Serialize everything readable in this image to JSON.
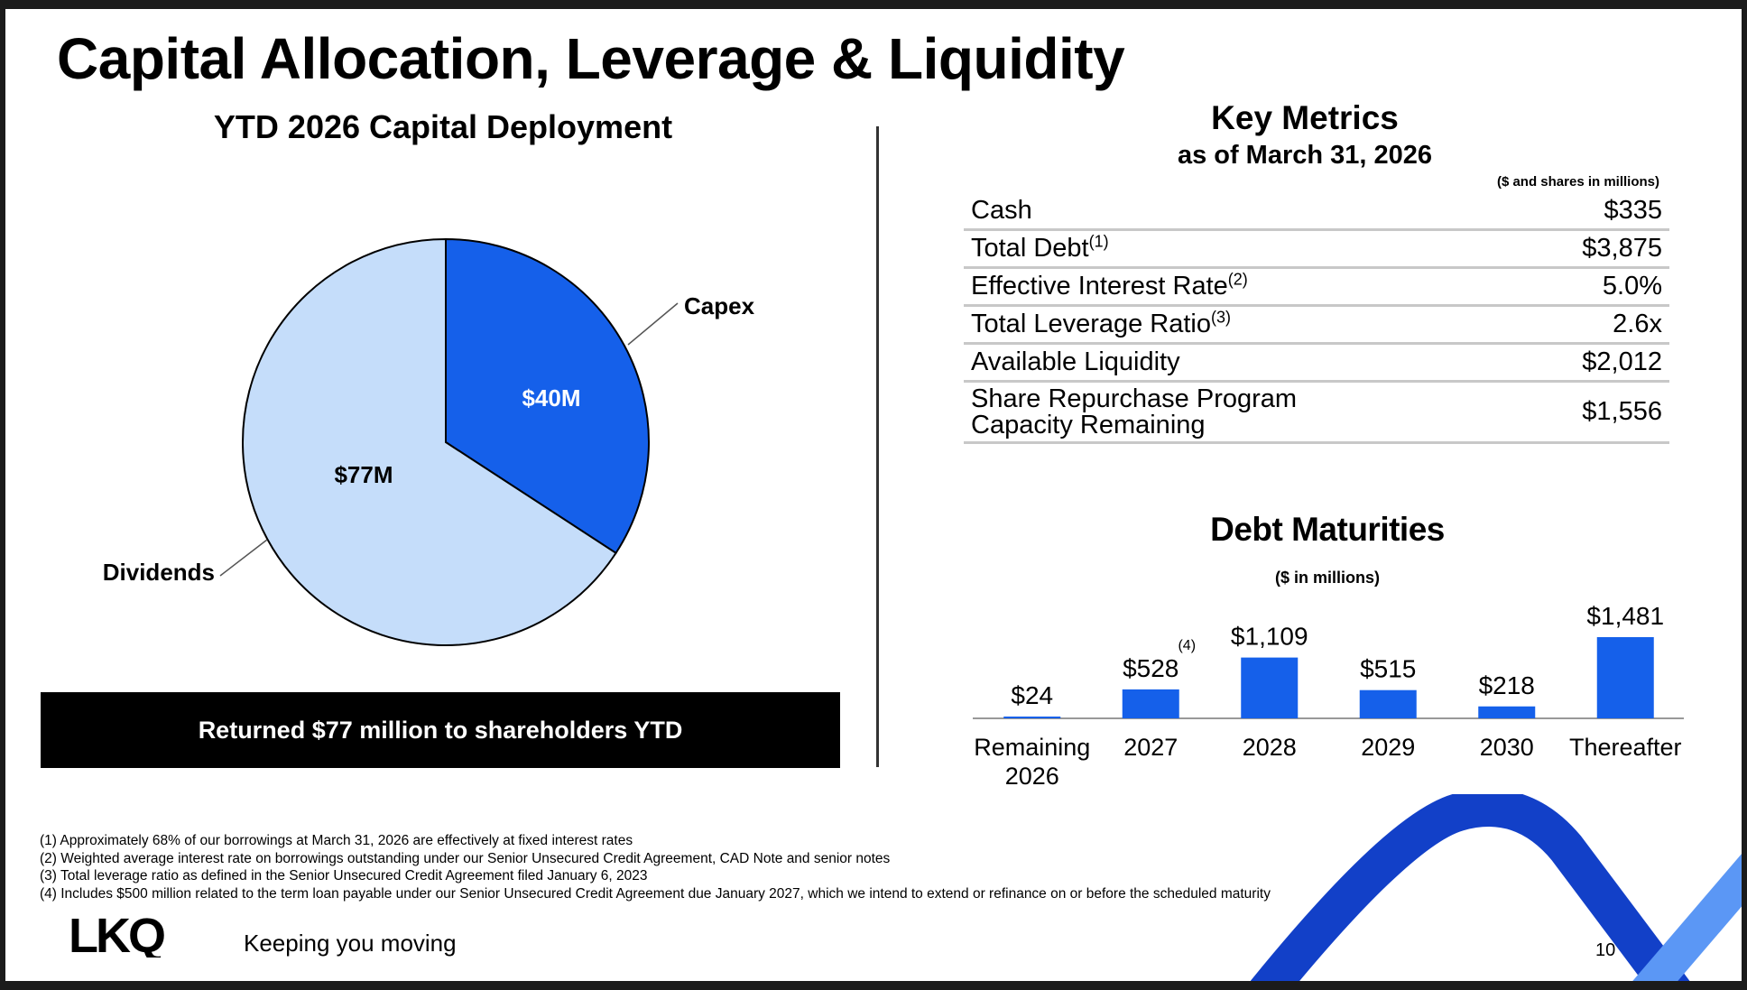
{
  "title": "Capital Allocation, Leverage & Liquidity",
  "capital_deployment": {
    "title": "YTD 2026 Capital Deployment",
    "banner": "Returned $77 million to shareholders YTD"
  },
  "key_metrics": {
    "title": "Key Metrics",
    "subtitle": "as of March 31, 2026",
    "units": "($ and shares in millions)",
    "rows": [
      {
        "label": "Cash",
        "note": "",
        "value": "$335"
      },
      {
        "label": "Total Debt",
        "note": "(1)",
        "value": "$3,875"
      },
      {
        "label": "Effective Interest Rate",
        "note": "(2)",
        "value": "5.0%"
      },
      {
        "label": "Total Leverage Ratio",
        "note": "(3)",
        "value": "2.6x"
      },
      {
        "label": "Available Liquidity",
        "note": "",
        "value": "$2,012"
      },
      {
        "label": "Share Repurchase Program",
        "label2": "Capacity Remaining",
        "note": "",
        "value": "$1,556"
      }
    ]
  },
  "debt_maturities": {
    "title": "Debt Maturities",
    "units": "($ in millions)"
  },
  "chart_data": [
    {
      "type": "pie",
      "title": "YTD 2026 Capital Deployment",
      "slices": [
        {
          "label": "Capex",
          "value": 40,
          "display": "$40M",
          "color": "#1560ea"
        },
        {
          "label": "Dividends",
          "value": 77,
          "display": "$77M",
          "color": "#c5ddfa"
        }
      ]
    },
    {
      "type": "bar",
      "title": "Debt Maturities",
      "categories": [
        "Remaining 2026",
        "2027",
        "2028",
        "2029",
        "2030",
        "Thereafter"
      ],
      "category_lines": [
        [
          "Remaining",
          "2026"
        ],
        [
          "2027"
        ],
        [
          "2028"
        ],
        [
          "2029"
        ],
        [
          "2030"
        ],
        [
          "Thereafter"
        ]
      ],
      "values": [
        24,
        528,
        1109,
        515,
        218,
        1481
      ],
      "value_labels": [
        "$24",
        "$528",
        "$1,109",
        "$515",
        "$218",
        "$1,481"
      ],
      "annotations": [
        {
          "category": "2027",
          "text": "(4)"
        }
      ],
      "bar_color": "#1560ea",
      "ylim": [
        0,
        1481
      ]
    }
  ],
  "footnotes": [
    "(1)  Approximately 68% of our borrowings at March 31, 2026 are effectively at fixed interest rates",
    "(2)  Weighted average interest rate on borrowings outstanding under our Senior Unsecured Credit Agreement, CAD Note and senior notes",
    "(3)  Total leverage ratio as defined in the Senior Unsecured Credit Agreement filed January 6, 2023",
    "(4)  Includes $500 million related to the term loan payable under our Senior Unsecured Credit Agreement due January 2027, which we intend to extend or refinance on or before the scheduled maturity"
  ],
  "brand": {
    "logo_text": "LKQ",
    "tagline": "Keeping you moving",
    "dark_blue": "#1240c8",
    "light_blue": "#5b97f5"
  },
  "page_number": "10"
}
